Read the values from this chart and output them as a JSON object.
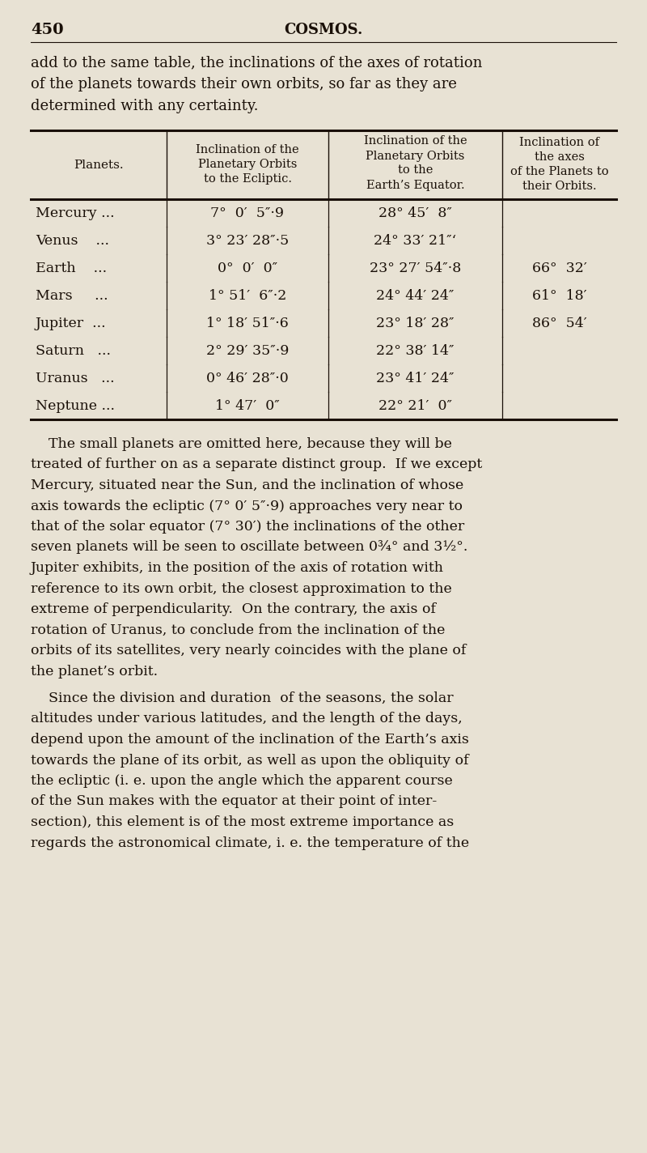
{
  "page_number": "450",
  "page_title": "COSMOS.",
  "bg_color": "#e8e2d4",
  "text_color": "#1a1008",
  "intro_lines": [
    "add to the same table, the inclinations of the axes of rotation",
    "of the planets towards their own orbits, so far as they are",
    "determined with any certainty."
  ],
  "col0_header_lines": [
    "Planets."
  ],
  "col1_header_lines": [
    "Inclination of the",
    "Planetary Orbits",
    "to the Ecliptic."
  ],
  "col2_header_lines": [
    "Inclination of the",
    "Planetary Orbits",
    "to the",
    "Earth’s Equator."
  ],
  "col3_header_lines": [
    "Inclination of",
    "the axes",
    "of the Planets to",
    "their Orbits."
  ],
  "table_rows": [
    [
      "Mercury ...",
      "7°  0′  5″·9",
      "28° 45′  8″",
      ""
    ],
    [
      "Venus    ...",
      "3° 23′ 28″·5",
      "24° 33′ 21″ʻ",
      ""
    ],
    [
      "Earth    ...",
      "0°  0′  0″",
      "23° 27′ 54″·8",
      "66°  32′"
    ],
    [
      "Mars     ...",
      "1° 51′  6″·2",
      "24° 44′ 24″",
      "61°  18′"
    ],
    [
      "Jupiter  ...",
      "1° 18′ 51″·6",
      "23° 18′ 28″",
      "86°  54′"
    ],
    [
      "Saturn   ...",
      "2° 29′ 35″·9",
      "22° 38′ 14″",
      ""
    ],
    [
      "Uranus   ...",
      "0° 46′ 28″·0",
      "23° 41′ 24″",
      ""
    ],
    [
      "Neptune ...",
      "1° 47′  0″",
      "22° 21′  0″",
      ""
    ]
  ],
  "body_paragraphs": [
    [
      "    The small planets are omitted here, because they will be",
      "treated of further on as a separate distinct group.  If we except",
      "Mercury, situated near the Sun, and the inclination of whose",
      "axis towards the ecliptic (7° 0′ 5″·9) approaches very near to",
      "that of the solar equator (7° 30′) the inclinations of the other",
      "seven planets will be seen to oscillate between 0¾° and 3½°.",
      "Jupiter exhibits, in the position of the axis of rotation with",
      "reference to its own orbit, the closest approximation to the",
      "extreme of perpendicularity.  On the contrary, the axis of",
      "rotation of Uranus, to conclude from the inclination of the",
      "orbits of its satellites, very nearly coincides with the plane of",
      "the planet’s orbit."
    ],
    [
      "    Since the division and duration  of the seasons, the solar",
      "altitudes under various latitudes, and the length of the days,",
      "depend upon the amount of the inclination of the Earth’s axis",
      "towards the plane of its orbit, as well as upon the obliquity of",
      "the ecliptic (i. e. upon the angle which the apparent course",
      "of the Sun makes with the equator at their point of inter-",
      "section), this element is of the most extreme importance as",
      "regards the astronomical climate, i. e. the temperature of the"
    ]
  ]
}
